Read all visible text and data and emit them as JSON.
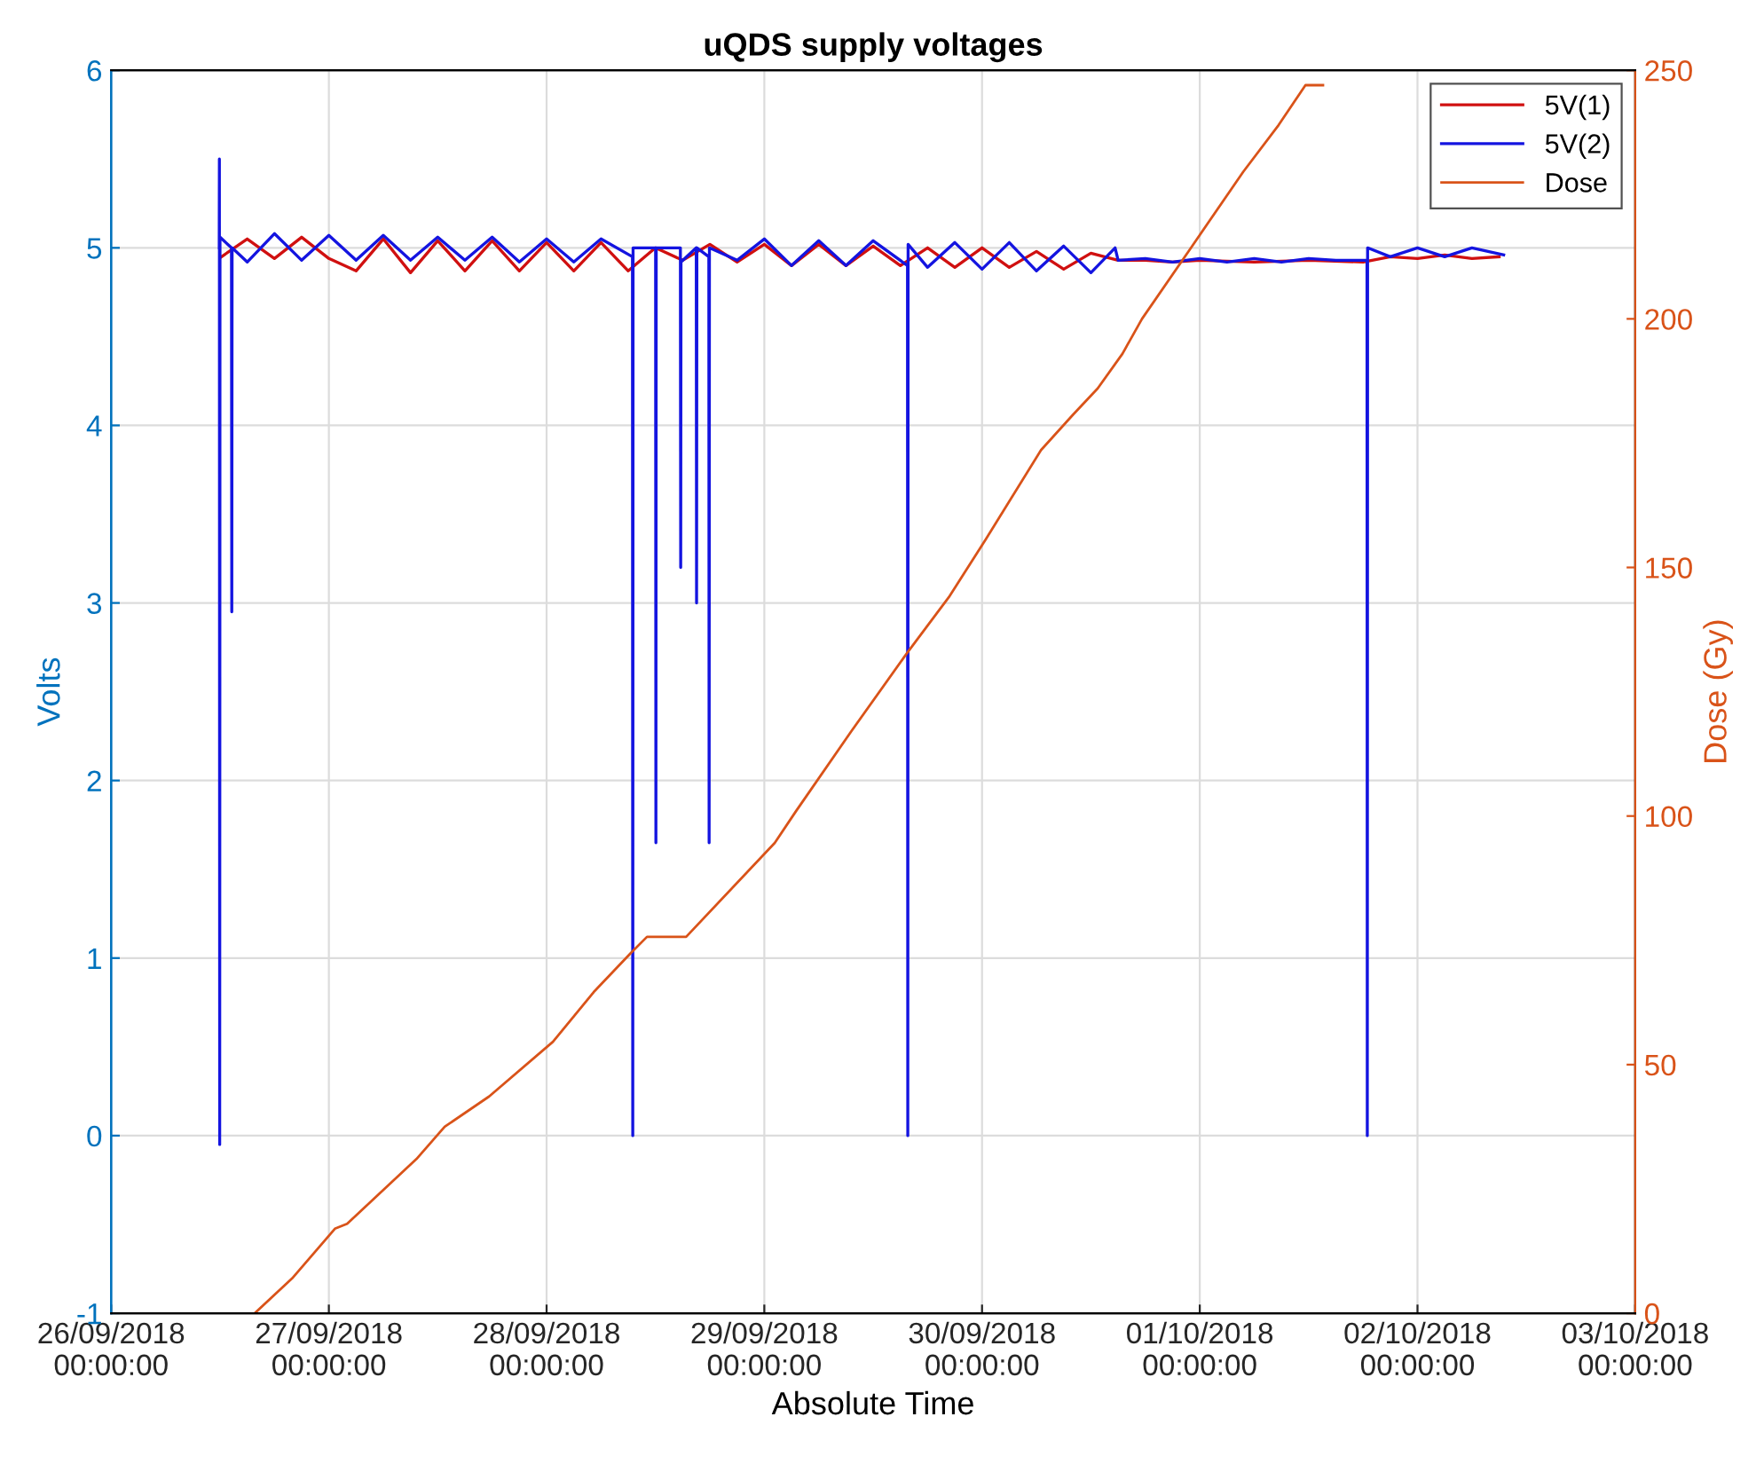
{
  "chart_data": {
    "type": "line",
    "title": "uQDS supply voltages",
    "xlabel": "Absolute Time",
    "ylabel": "Volts",
    "y2label": "Dose (Gy)",
    "xlim": [
      "2018-09-26",
      "2018-10-03"
    ],
    "xticks": [
      {
        "value": "2018-09-26",
        "label": "26/09/2018\n00:00:00"
      },
      {
        "value": "2018-09-27",
        "label": "27/09/2018\n00:00:00"
      },
      {
        "value": "2018-09-28",
        "label": "28/09/2018\n00:00:00"
      },
      {
        "value": "2018-09-29",
        "label": "29/09/2018\n00:00:00"
      },
      {
        "value": "2018-09-30",
        "label": "30/09/2018\n00:00:00"
      },
      {
        "value": "2018-10-01",
        "label": "01/10/2018\n00:00:00"
      },
      {
        "value": "2018-10-02",
        "label": "02/10/2018\n00:00:00"
      },
      {
        "value": "2018-10-03",
        "label": "03/10/2018\n00:00:00"
      }
    ],
    "ylim": [
      -1,
      6
    ],
    "yticks": [
      -1,
      0,
      1,
      2,
      3,
      4,
      5,
      6
    ],
    "y2lim": [
      0,
      250
    ],
    "y2ticks": [
      0,
      50,
      100,
      150,
      200,
      250
    ],
    "grid": true,
    "legend": "top right",
    "series": [
      {
        "name": "5V(1)",
        "color": "#d01010",
        "x": [
          "2018-09-26T12:10",
          "2018-09-26T15:00",
          "2018-09-26T18:00",
          "2018-09-26T21:00",
          "2018-09-27T00:00",
          "2018-09-27T03:00",
          "2018-09-27T06:00",
          "2018-09-27T09:00",
          "2018-09-27T12:00",
          "2018-09-27T15:00",
          "2018-09-27T18:00",
          "2018-09-27T21:00",
          "2018-09-28T00:00",
          "2018-09-28T03:00",
          "2018-09-28T06:00",
          "2018-09-28T09:00",
          "2018-09-28T12:00",
          "2018-09-28T15:00",
          "2018-09-28T18:00",
          "2018-09-28T21:00",
          "2018-09-29T00:00",
          "2018-09-29T03:00",
          "2018-09-29T06:00",
          "2018-09-29T09:00",
          "2018-09-29T12:00",
          "2018-09-29T15:00",
          "2018-09-29T18:00",
          "2018-09-29T21:00",
          "2018-09-30T00:00",
          "2018-09-30T03:00",
          "2018-09-30T06:00",
          "2018-09-30T09:00",
          "2018-09-30T12:00",
          "2018-09-30T15:00",
          "2018-09-30T18:00",
          "2018-09-30T21:00",
          "2018-10-01T00:00",
          "2018-10-01T06:00",
          "2018-10-01T12:00",
          "2018-10-01T18:00",
          "2018-10-01T21:00",
          "2018-10-02T00:00",
          "2018-10-02T03:00",
          "2018-10-02T06:00",
          "2018-10-02T09:00"
        ],
        "values": [
          4.95,
          5.05,
          4.94,
          5.06,
          4.94,
          4.87,
          5.05,
          4.86,
          5.04,
          4.87,
          5.04,
          4.87,
          5.03,
          4.87,
          5.03,
          4.87,
          5.0,
          4.93,
          5.02,
          4.92,
          5.02,
          4.9,
          5.02,
          4.9,
          5.01,
          4.9,
          5.0,
          4.89,
          5.0,
          4.89,
          4.98,
          4.88,
          4.97,
          4.93,
          4.93,
          4.92,
          4.93,
          4.92,
          4.93,
          4.92,
          4.95,
          4.94,
          4.96,
          4.94,
          4.95
        ]
      },
      {
        "name": "5V(2)",
        "color": "#1414e0",
        "x": [
          "2018-09-26T11:55",
          "2018-09-26T11:56",
          "2018-09-26T11:58",
          "2018-09-26T12:00",
          "2018-09-26T13:16",
          "2018-09-26T13:18",
          "2018-09-26T13:20",
          "2018-09-26T15:00",
          "2018-09-26T18:00",
          "2018-09-26T21:00",
          "2018-09-27T00:00",
          "2018-09-27T03:00",
          "2018-09-27T06:00",
          "2018-09-27T09:00",
          "2018-09-27T12:00",
          "2018-09-27T15:00",
          "2018-09-27T18:00",
          "2018-09-27T21:00",
          "2018-09-28T00:00",
          "2018-09-28T03:00",
          "2018-09-28T06:00",
          "2018-09-28T09:28",
          "2018-09-28T09:30",
          "2018-09-28T09:32",
          "2018-09-28T12:01",
          "2018-09-28T12:03",
          "2018-09-28T12:05",
          "2018-09-28T14:45",
          "2018-09-28T14:47",
          "2018-09-28T14:49",
          "2018-09-28T16:30",
          "2018-09-28T16:32",
          "2018-09-28T16:34",
          "2018-09-28T17:53",
          "2018-09-28T17:55",
          "2018-09-28T17:57",
          "2018-09-28T21:00",
          "2018-09-29T00:00",
          "2018-09-29T03:00",
          "2018-09-29T06:00",
          "2018-09-29T09:00",
          "2018-09-29T12:00",
          "2018-09-29T15:47",
          "2018-09-29T15:49",
          "2018-09-29T15:51",
          "2018-09-29T18:00",
          "2018-09-29T21:00",
          "2018-09-30T00:00",
          "2018-09-30T03:00",
          "2018-09-30T06:00",
          "2018-09-30T09:00",
          "2018-09-30T12:00",
          "2018-09-30T14:40",
          "2018-09-30T15:00",
          "2018-09-30T18:00",
          "2018-09-30T21:00",
          "2018-10-01T00:00",
          "2018-10-01T03:00",
          "2018-10-01T06:00",
          "2018-10-01T09:00",
          "2018-10-01T12:00",
          "2018-10-01T15:00",
          "2018-10-01T18:26",
          "2018-10-01T18:28",
          "2018-10-01T18:30",
          "2018-10-01T21:00",
          "2018-10-02T00:00",
          "2018-10-02T03:00",
          "2018-10-02T06:00",
          "2018-10-02T09:30"
        ],
        "values": [
          5.0,
          5.5,
          -0.05,
          5.06,
          5.0,
          2.95,
          5.0,
          4.92,
          5.08,
          4.93,
          5.07,
          4.93,
          5.07,
          4.93,
          5.06,
          4.93,
          5.06,
          4.92,
          5.05,
          4.92,
          5.05,
          4.95,
          0,
          5.0,
          5.0,
          1.65,
          5.0,
          5.0,
          3.2,
          4.92,
          5.0,
          3.0,
          5.0,
          4.95,
          1.65,
          5.0,
          4.93,
          5.05,
          4.9,
          5.04,
          4.9,
          5.04,
          4.9,
          0,
          5.02,
          4.89,
          5.03,
          4.88,
          5.03,
          4.87,
          5.01,
          4.86,
          5.0,
          4.93,
          4.94,
          4.92,
          4.94,
          4.92,
          4.94,
          4.92,
          4.94,
          4.93,
          4.93,
          0,
          5.0,
          4.95,
          5.0,
          4.95,
          5.0,
          4.96
        ]
      },
      {
        "name": "Dose",
        "color": "#d95319",
        "axis": "y2",
        "x": [
          "2018-09-26T15:50",
          "2018-09-26T19:57",
          "2018-09-27T00:40",
          "2018-09-27T02:01",
          "2018-09-27T09:39",
          "2018-09-27T12:46",
          "2018-09-27T17:40",
          "2018-09-28T00:42",
          "2018-09-28T05:12",
          "2018-09-28T09:19",
          "2018-09-28T11:04",
          "2018-09-28T15:23",
          "2018-09-29T01:09",
          "2018-09-29T03:30",
          "2018-09-29T09:34",
          "2018-09-29T15:49",
          "2018-09-29T20:20",
          "2018-09-30T00:26",
          "2018-09-30T06:30",
          "2018-09-30T10:01",
          "2018-09-30T12:45",
          "2018-09-30T15:29",
          "2018-09-30T17:38",
          "2018-09-30T22:55",
          "2018-10-01T04:48",
          "2018-10-01T08:42",
          "2018-10-01T11:39",
          "2018-10-01T13:35"
        ],
        "values": [
          0,
          7,
          17,
          18,
          31,
          37.5,
          43.6,
          54.6,
          64.6,
          72.5,
          75.7,
          75.7,
          94.6,
          101,
          117,
          133,
          144,
          155.7,
          173.6,
          180.7,
          186,
          193,
          200,
          214,
          229.6,
          239,
          247,
          247
        ]
      }
    ]
  }
}
